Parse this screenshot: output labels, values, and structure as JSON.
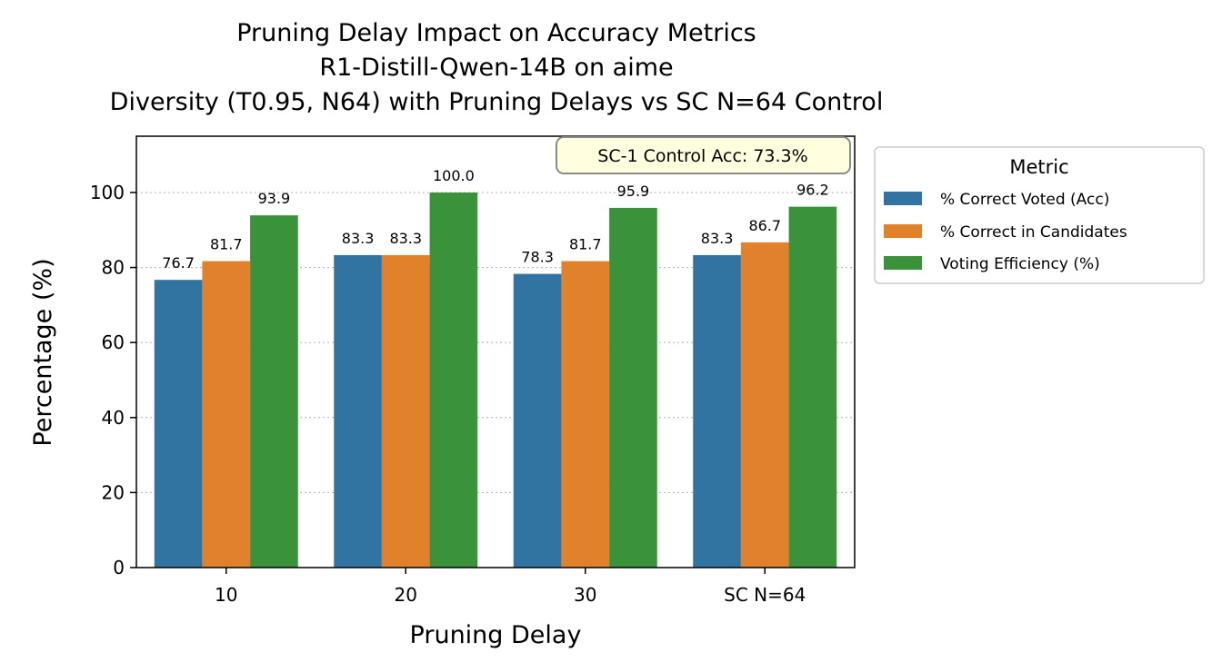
{
  "chart_data": {
    "type": "bar",
    "title_lines": [
      "Pruning Delay Impact on Accuracy Metrics",
      "R1-Distill-Qwen-14B on aime",
      "Diversity (T0.95, N64) with Pruning Delays vs SC N=64 Control"
    ],
    "xlabel": "Pruning Delay",
    "ylabel": "Percentage (%)",
    "categories": [
      "10",
      "20",
      "30",
      "SC N=64"
    ],
    "series": [
      {
        "name": "% Correct Voted (Acc)",
        "color": "#3274a1",
        "values": [
          76.7,
          83.3,
          78.3,
          83.3
        ]
      },
      {
        "name": "% Correct in Candidates",
        "color": "#e1812c",
        "values": [
          81.7,
          83.3,
          81.7,
          86.7
        ]
      },
      {
        "name": "Voting Efficiency (%)",
        "color": "#3a923a",
        "values": [
          93.9,
          100.0,
          95.9,
          96.2
        ]
      }
    ],
    "ylim": [
      0,
      115
    ],
    "yticks": [
      0,
      20,
      40,
      60,
      80,
      100
    ],
    "grid": "y-dotted",
    "legend": {
      "title": "Metric",
      "placement": "outside-right"
    },
    "annotation": "SC-1 Control Acc: 73.3%"
  }
}
